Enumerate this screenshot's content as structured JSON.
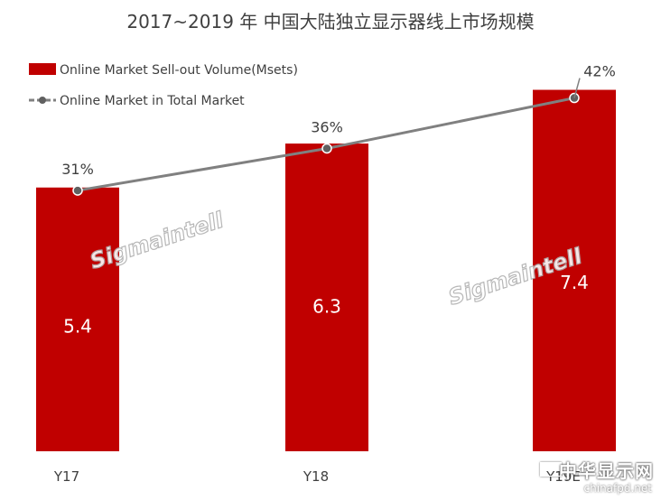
{
  "chart_data": {
    "type": "bar",
    "title": "2017~2019 年 中国大陆独立显示器线上市场规模",
    "categories": [
      "Y17",
      "Y18",
      "Y19E"
    ],
    "series": [
      {
        "name": "Online Market Sell-out Volume(Msets)",
        "type": "bar",
        "values": [
          5.4,
          6.3,
          7.4
        ],
        "labels": [
          "5.4",
          "6.3",
          "7.4"
        ],
        "color": "#c00000"
      },
      {
        "name": "Online Market in Total Market",
        "type": "line",
        "values": [
          31,
          36,
          42
        ],
        "labels": [
          "31%",
          "36%",
          "42%"
        ],
        "color": "#808080"
      }
    ],
    "ylim_bar": [
      0,
      8.5
    ],
    "ylim_line": [
      0,
      50
    ],
    "grid": false,
    "legend_position": "top-left"
  },
  "watermark": {
    "text": "Sigmaintell"
  },
  "logo": {
    "main": "中华显示网",
    "sub": "chinafpd.net",
    "badge": "FPD"
  }
}
